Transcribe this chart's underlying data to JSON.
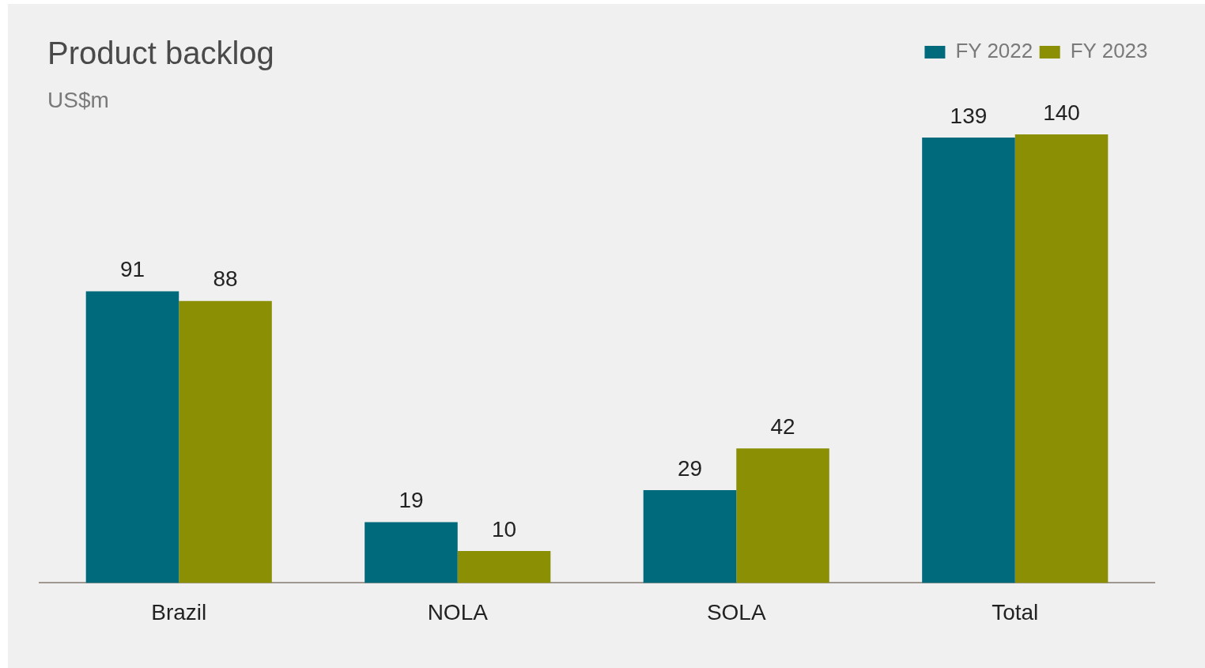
{
  "chart_data": {
    "type": "bar",
    "title": "Product backlog",
    "subtitle": "US$m",
    "categories": [
      "Brazil",
      "NOLA",
      "SOLA",
      "Total"
    ],
    "series": [
      {
        "name": "FY 2022",
        "color": "#006a7d",
        "values": [
          91,
          19,
          29,
          139
        ]
      },
      {
        "name": "FY 2023",
        "color": "#8a8f04",
        "values": [
          88,
          10,
          42,
          140
        ]
      }
    ],
    "data_labels": true,
    "legend": "top right"
  }
}
